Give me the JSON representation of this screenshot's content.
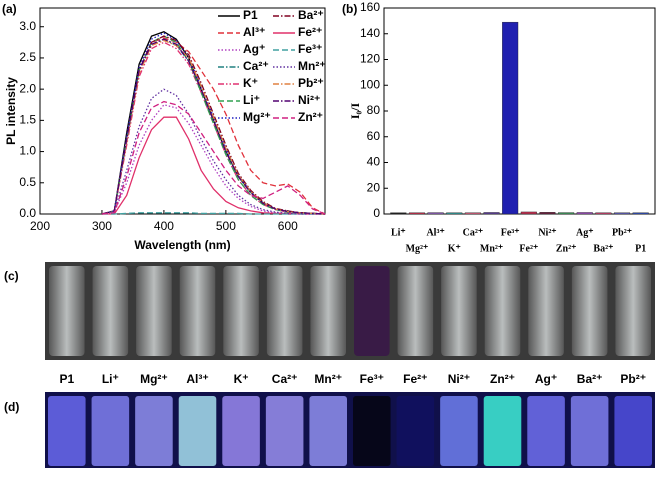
{
  "chart_data": [
    {
      "type": "line",
      "panel_label": "(a)",
      "xlabel": "Wavelength (nm)",
      "ylabel": "PL intensity",
      "xlim": [
        200,
        660
      ],
      "xticks": [
        200,
        300,
        400,
        500,
        600
      ],
      "ylim": [
        0,
        3.3
      ],
      "yticks": [
        {
          "value": 0,
          "label": "0.0"
        },
        0.5,
        {
          "value": 1,
          "label": "1.0"
        },
        1.5,
        {
          "value": 2,
          "label": "2.0"
        },
        2.5,
        {
          "value": 3,
          "label": "3.0"
        }
      ],
      "x": [
        300,
        320,
        340,
        360,
        380,
        400,
        420,
        440,
        460,
        480,
        500,
        520,
        540,
        560,
        580,
        600,
        620,
        640,
        660
      ],
      "series": [
        {
          "name": "P1",
          "color": "#000000",
          "dash": "solid",
          "values": [
            0,
            0.05,
            1.3,
            2.4,
            2.85,
            2.92,
            2.8,
            2.5,
            2.0,
            1.5,
            1.0,
            0.6,
            0.35,
            0.18,
            0.08,
            0.04,
            0.02,
            0.01,
            0
          ]
        },
        {
          "name": "Al³⁺",
          "color": "#e0303a",
          "dash": "dashed",
          "values": [
            0,
            0.05,
            1.2,
            2.3,
            2.75,
            2.82,
            2.75,
            2.6,
            2.3,
            2.0,
            1.6,
            1.1,
            0.7,
            0.5,
            0.45,
            0.48,
            0.35,
            0.1,
            0
          ]
        },
        {
          "name": "Ag⁺",
          "color": "#b040c0",
          "dash": "dotted",
          "values": [
            0,
            0.03,
            0.5,
            1.1,
            1.5,
            1.75,
            1.7,
            1.45,
            1.1,
            0.75,
            0.45,
            0.25,
            0.12,
            0.05,
            0.02,
            0.01,
            0,
            0,
            0
          ]
        },
        {
          "name": "Ca²⁺",
          "color": "#208080",
          "dash": "dashdot",
          "values": [
            0,
            0.05,
            1.2,
            2.3,
            2.7,
            2.8,
            2.7,
            2.45,
            2.0,
            1.5,
            1.0,
            0.6,
            0.35,
            0.18,
            0.08,
            0.04,
            0.02,
            0.01,
            0
          ]
        },
        {
          "name": "K⁺",
          "color": "#e03070",
          "dash": "dashdotdot",
          "values": [
            0,
            0.05,
            1.1,
            2.2,
            2.65,
            2.75,
            2.65,
            2.4,
            1.95,
            1.45,
            0.95,
            0.55,
            0.3,
            0.15,
            0.07,
            0.03,
            0.02,
            0.01,
            0
          ]
        },
        {
          "name": "Li⁺",
          "color": "#30a050",
          "dash": "dashed",
          "values": [
            0,
            0.05,
            1.2,
            2.3,
            2.75,
            2.85,
            2.75,
            2.45,
            1.95,
            1.45,
            0.95,
            0.55,
            0.3,
            0.15,
            0.07,
            0.03,
            0.02,
            0.01,
            0
          ]
        },
        {
          "name": "Mg²⁺",
          "color": "#2020c0",
          "dash": "dotted",
          "values": [
            0,
            0.05,
            1.25,
            2.35,
            2.8,
            2.9,
            2.78,
            2.5,
            2.05,
            1.55,
            1.05,
            0.62,
            0.36,
            0.18,
            0.08,
            0.04,
            0.02,
            0.01,
            0
          ]
        },
        {
          "name": "Ba²⁺",
          "color": "#800020",
          "dash": "dashdot",
          "values": [
            0,
            0.05,
            1.2,
            2.3,
            2.75,
            2.85,
            2.78,
            2.55,
            2.1,
            1.6,
            1.1,
            0.65,
            0.38,
            0.2,
            0.09,
            0.05,
            0.02,
            0.01,
            0
          ]
        },
        {
          "name": "Fe²⁺",
          "color": "#e0306a",
          "dash": "solid",
          "values": [
            0,
            0,
            0.3,
            0.9,
            1.35,
            1.55,
            1.55,
            1.2,
            0.7,
            0.4,
            0.2,
            0.1,
            0.05,
            0.02,
            0.01,
            0.01,
            0,
            0,
            0
          ]
        },
        {
          "name": "Fe³⁺",
          "color": "#40a0a0",
          "dash": "dashed",
          "values": [
            0,
            0,
            0.01,
            0.02,
            0.02,
            0.02,
            0.02,
            0.02,
            0.01,
            0.01,
            0.01,
            0.01,
            0,
            0,
            0,
            0,
            0,
            0,
            0
          ]
        },
        {
          "name": "Mn²⁺",
          "color": "#6030a0",
          "dash": "dotted",
          "values": [
            0,
            0.04,
            0.7,
            1.4,
            1.85,
            2.0,
            1.9,
            1.6,
            1.2,
            0.85,
            0.55,
            0.3,
            0.15,
            0.07,
            0.03,
            0.01,
            0,
            0,
            0
          ]
        },
        {
          "name": "Pb²⁺",
          "color": "#e08040",
          "dash": "dashdot",
          "values": [
            0,
            0.05,
            1.15,
            2.25,
            2.7,
            2.78,
            2.7,
            2.5,
            2.05,
            1.55,
            1.05,
            0.62,
            0.36,
            0.18,
            0.08,
            0.04,
            0.02,
            0.01,
            0
          ]
        },
        {
          "name": "Ni²⁺",
          "color": "#500070",
          "dash": "dashdot",
          "values": [
            0,
            0.05,
            1.2,
            2.3,
            2.72,
            2.8,
            2.72,
            2.45,
            2.0,
            1.5,
            1.0,
            0.6,
            0.34,
            0.17,
            0.08,
            0.04,
            0.02,
            0.01,
            0
          ]
        },
        {
          "name": "Zn²⁺",
          "color": "#d02080",
          "dash": "dashed",
          "values": [
            0,
            0.02,
            0.6,
            1.3,
            1.7,
            1.8,
            1.75,
            1.6,
            1.3,
            1.0,
            0.7,
            0.45,
            0.3,
            0.25,
            0.35,
            0.45,
            0.3,
            0.08,
            0
          ]
        }
      ]
    },
    {
      "type": "bar",
      "panel_label": "(b)",
      "ylabel": "I₀/I",
      "ylim": [
        0,
        160
      ],
      "yticks": [
        0,
        20,
        40,
        60,
        80,
        100,
        120,
        140,
        160
      ],
      "categories": [
        "Li⁺",
        "Mg²⁺",
        "Al³⁺",
        "K⁺",
        "Ca²⁺",
        "Mn²⁺",
        "Fe³⁺",
        "Fe²⁺",
        "Ni²⁺",
        "Zn²⁺",
        "Ag⁺",
        "Ba²⁺",
        "Pb²⁺",
        "P1"
      ],
      "values": [
        1,
        1,
        1.1,
        1,
        1,
        1.2,
        149,
        1.6,
        1.3,
        1.1,
        1.2,
        1,
        1,
        1
      ],
      "colors": [
        "#202020",
        "#d03050",
        "#9060c0",
        "#30a0a0",
        "#e06080",
        "#6040a0",
        "#2020b0",
        "#c03050",
        "#702040",
        "#40a060",
        "#a050c0",
        "#d04070",
        "#6060c0",
        "#3050c0"
      ]
    }
  ],
  "photos": {
    "c_label": "(c)",
    "d_label": "(d)",
    "labels": [
      "P1",
      "Li⁺",
      "Mg²⁺",
      "Al³⁺",
      "K⁺",
      "Ca²⁺",
      "Mn²⁺",
      "Fe³⁺",
      "Fe²⁺",
      "Ni²⁺",
      "Zn²⁺",
      "Ag⁺",
      "Ba²⁺",
      "Pb²⁺"
    ]
  }
}
